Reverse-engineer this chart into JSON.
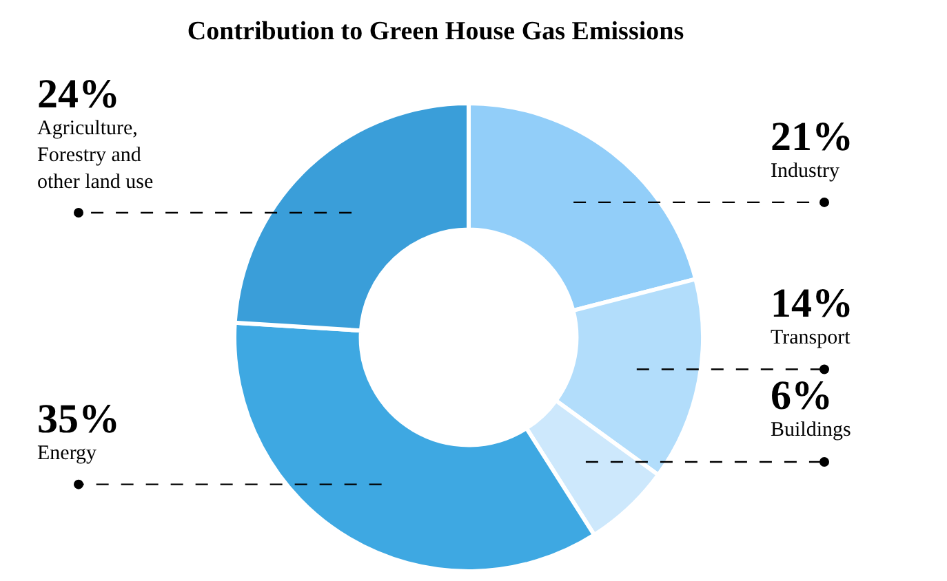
{
  "chart_data": {
    "type": "donut",
    "title": "Contribution to Green House Gas Emissions",
    "categories": [
      "Industry",
      "Transport",
      "Buildings",
      "Energy",
      "Agriculture, Forestry and other land use"
    ],
    "values": [
      21,
      14,
      6,
      35,
      24
    ],
    "value_labels": [
      "21%",
      "14%",
      "6%",
      "35%",
      "24%"
    ],
    "colors": [
      "#92cef9",
      "#b2ddfb",
      "#cde8fc",
      "#3ea8e2",
      "#3a9ed9"
    ]
  }
}
